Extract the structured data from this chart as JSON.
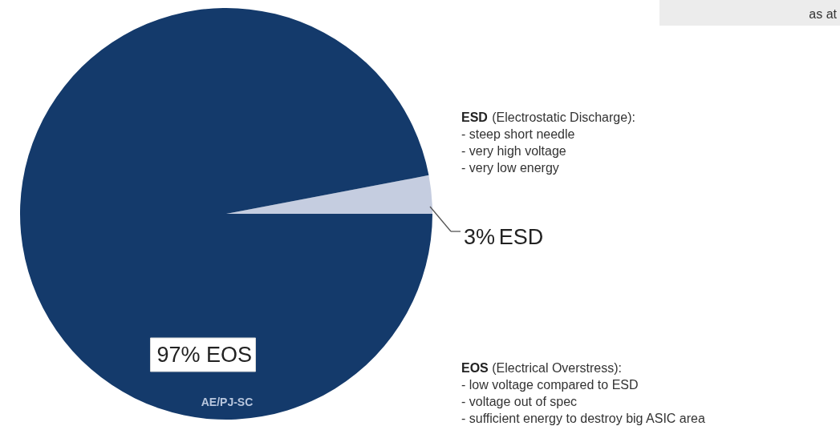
{
  "chart_data": {
    "type": "pie",
    "categories": [
      "ESD",
      "EOS"
    ],
    "values": [
      3,
      97
    ],
    "colors": [
      "#c5cde0",
      "#143a6b"
    ],
    "value_labels": [
      "3%",
      "97%"
    ],
    "annotations": [
      "ESD (Electrostatic Discharge):",
      "- steep short needle",
      "- very high voltage",
      "- very low energy",
      "EOS (Electrical Overstress):",
      "- low voltage compared to ESD",
      "- voltage out of spec",
      "- sufficient energy to destroy big ASIC area",
      "AE/PJ-SC",
      "as at"
    ]
  }
}
